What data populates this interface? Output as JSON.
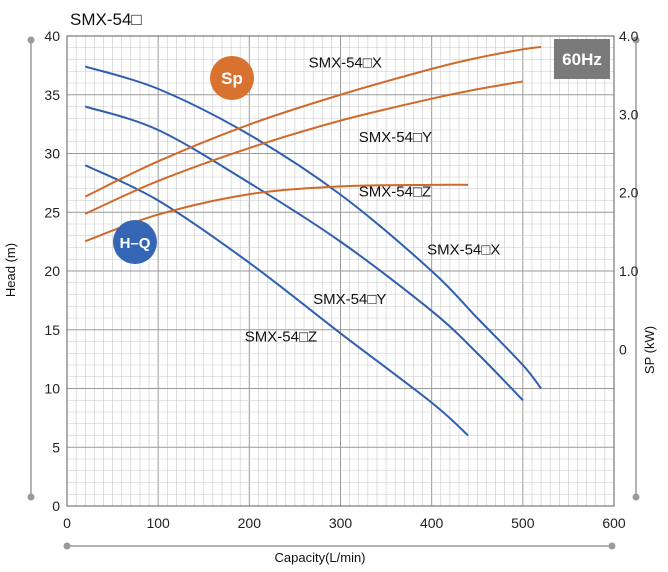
{
  "chart_data": {
    "type": "line",
    "title": "SMX-54□",
    "frequency_badge": "60Hz",
    "xlabel": "Capacity(L/min)",
    "ylabel_left": "Head (m)",
    "ylabel_right": "SP (kW)",
    "xlim": [
      0,
      600
    ],
    "ylim_left": [
      0,
      40
    ],
    "ylim_right": [
      -2.0,
      4.0
    ],
    "x_ticks": [
      "0",
      "100",
      "200",
      "300",
      "400",
      "500",
      "600"
    ],
    "y_left_ticks": [
      "0",
      "5",
      "10",
      "15",
      "20",
      "25",
      "30",
      "35",
      "40"
    ],
    "y_right_ticks": [
      "0",
      "1.0",
      "2.0",
      "3.0",
      "4.0"
    ],
    "grid": true,
    "badges": {
      "hq": "H–Q",
      "sp": "Sp"
    },
    "colors": {
      "hq": "#2f5fae",
      "sp": "#d06a2a",
      "hq_badge": "#3565b5",
      "sp_badge": "#d9722f",
      "hz_badge": "#7a7a7a",
      "grid": "#b5b5b5"
    },
    "series": [
      {
        "name": "SMX-54□X",
        "group": "hq",
        "axis": "left",
        "x": [
          20,
          100,
          200,
          300,
          400,
          450,
          500,
          520
        ],
        "y": [
          37.4,
          35.5,
          31.6,
          26.5,
          20.0,
          16.0,
          12.0,
          10.0
        ]
      },
      {
        "name": "SMX-54□Y",
        "group": "hq",
        "axis": "left",
        "x": [
          20,
          100,
          200,
          300,
          400,
          450,
          500
        ],
        "y": [
          34.0,
          32.0,
          27.5,
          22.5,
          16.6,
          13.0,
          9.0
        ]
      },
      {
        "name": "SMX-54□Z",
        "group": "hq",
        "axis": "left",
        "x": [
          20,
          100,
          200,
          300,
          400,
          440
        ],
        "y": [
          29.0,
          26.0,
          20.7,
          14.7,
          8.8,
          6.0
        ]
      },
      {
        "name": "SMX-54□X",
        "group": "sp",
        "axis": "right",
        "x": [
          20,
          100,
          200,
          300,
          400,
          450,
          500,
          520
        ],
        "y": [
          1.95,
          2.4,
          2.87,
          3.25,
          3.58,
          3.72,
          3.83,
          3.86
        ]
      },
      {
        "name": "SMX-54□Y",
        "group": "sp",
        "axis": "right",
        "x": [
          20,
          100,
          200,
          300,
          400,
          450,
          500
        ],
        "y": [
          1.73,
          2.15,
          2.57,
          2.92,
          3.2,
          3.32,
          3.42
        ]
      },
      {
        "name": "SMX-54□Z",
        "group": "sp",
        "axis": "right",
        "x": [
          20,
          100,
          200,
          300,
          400,
          440
        ],
        "y": [
          1.38,
          1.72,
          1.98,
          2.08,
          2.1,
          2.1
        ]
      }
    ],
    "annotations": [
      {
        "text": "SMX-54□X",
        "series_group": "sp",
        "x": 265,
        "y_right": 3.6
      },
      {
        "text": "SMX-54□Y",
        "series_group": "sp",
        "x": 320,
        "y_right": 2.65
      },
      {
        "text": "SMX-54□Z",
        "series_group": "sp",
        "x": 320,
        "y_right": 1.95
      },
      {
        "text": "SMX-54□X",
        "series_group": "hq",
        "x": 395,
        "y": 21.4
      },
      {
        "text": "SMX-54□Y",
        "series_group": "hq",
        "x": 270,
        "y": 17.2
      },
      {
        "text": "SMX-54□Z",
        "series_group": "hq",
        "x": 195,
        "y": 14.0
      }
    ]
  }
}
